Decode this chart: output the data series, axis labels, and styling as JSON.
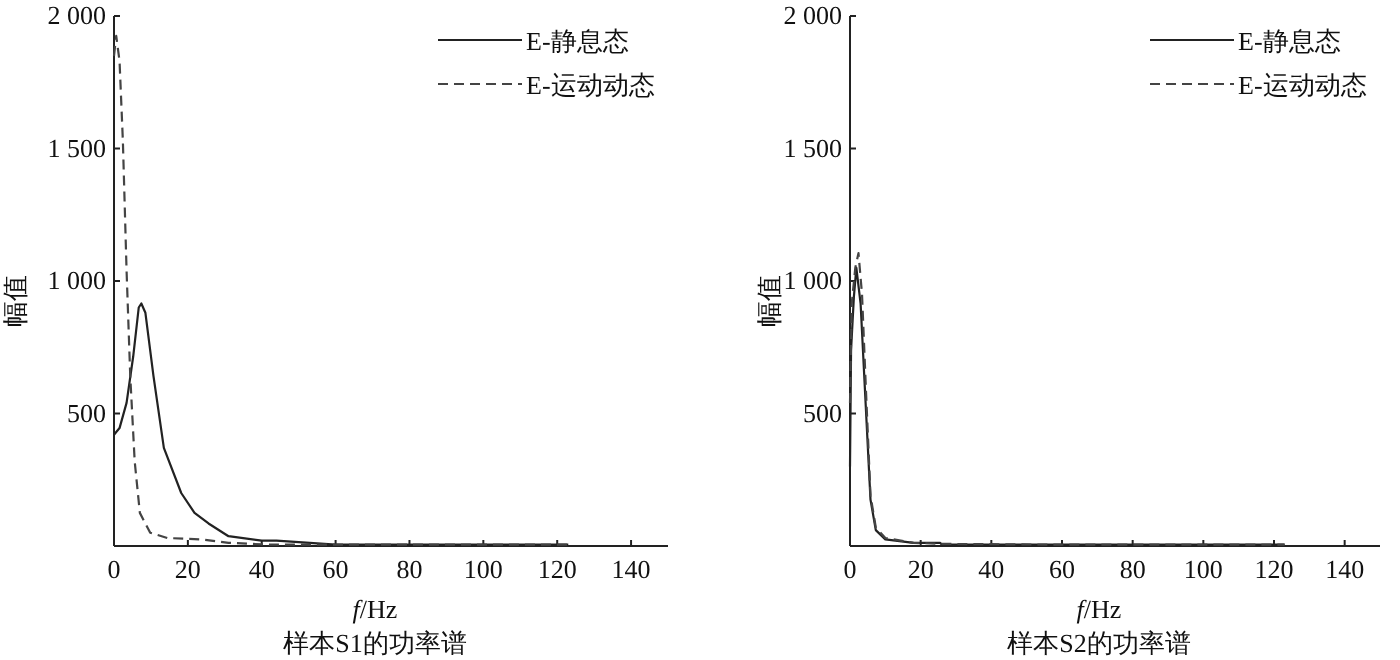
{
  "chart_data": [
    {
      "type": "line",
      "title": "样本S1的功率谱",
      "xlabel": "*f*/Hz",
      "ylabel": "幅值",
      "xlim": [
        0,
        150
      ],
      "ylim": [
        0,
        2000
      ],
      "xticks": [
        0,
        20,
        40,
        60,
        80,
        100,
        120,
        140
      ],
      "yticks": [
        {
          "value": 500,
          "label": "500"
        },
        {
          "value": 1000,
          "label": "1 000"
        },
        {
          "value": 1500,
          "label": "1 500"
        },
        {
          "value": 2000,
          "label": "2 000"
        }
      ],
      "legend": "top right",
      "series": [
        {
          "name": "E-静息态",
          "color": "#222222",
          "line_style": "solid",
          "x": [
            0,
            1.5,
            3.4,
            5.2,
            6.7,
            7.4,
            8.5,
            10.7,
            13.5,
            18.2,
            21.8,
            25.6,
            31,
            40,
            44,
            60,
            80,
            100,
            123
          ],
          "values": [
            420,
            445,
            540,
            715,
            900,
            915,
            880,
            640,
            370,
            200,
            125,
            85,
            37,
            20,
            20,
            5,
            5,
            5,
            5
          ]
        },
        {
          "name": "E-运动动态",
          "color": "#444444",
          "line_style": "dashed",
          "x": [
            0,
            0.6,
            1.5,
            2.4,
            3.4,
            4.4,
            5.6,
            7,
            9.8,
            14.5,
            23.7,
            31,
            42,
            60,
            80,
            100,
            123
          ],
          "values": [
            1850,
            1925,
            1830,
            1530,
            1040,
            640,
            320,
            125,
            50,
            30,
            25,
            12,
            5,
            5,
            5,
            5,
            5
          ]
        }
      ]
    },
    {
      "type": "line",
      "title": "样本S2的功率谱",
      "xlabel": "*f*/Hz",
      "ylabel": "幅值",
      "xlim": [
        0,
        150
      ],
      "ylim": [
        0,
        2000
      ],
      "xticks": [
        0,
        20,
        40,
        60,
        80,
        100,
        120,
        140
      ],
      "yticks": [
        {
          "value": 500,
          "label": "500"
        },
        {
          "value": 1000,
          "label": "1 000"
        },
        {
          "value": 1500,
          "label": "1 500"
        },
        {
          "value": 2000,
          "label": "2 000"
        }
      ],
      "legend": "top right",
      "series": [
        {
          "name": "E-静息态",
          "color": "#222222",
          "line_style": "solid",
          "x": [
            0,
            0.3,
            1.1,
            1.8,
            3,
            4.4,
            5.8,
            7.3,
            10,
            18,
            25.5,
            26,
            60,
            90,
            123
          ],
          "values": [
            300,
            740,
            940,
            1050,
            915,
            545,
            175,
            60,
            25,
            12,
            12,
            5,
            5,
            5,
            5
          ]
        },
        {
          "name": "E-运动动态",
          "color": "#444444",
          "line_style": "dashed",
          "x": [
            0,
            0.5,
            1.5,
            2.4,
            3.4,
            4.6,
            5.8,
            7.3,
            10,
            18,
            26,
            60,
            90,
            123
          ],
          "values": [
            540,
            915,
            1050,
            1105,
            950,
            560,
            190,
            70,
            30,
            12,
            8,
            5,
            5,
            5
          ]
        }
      ]
    }
  ]
}
